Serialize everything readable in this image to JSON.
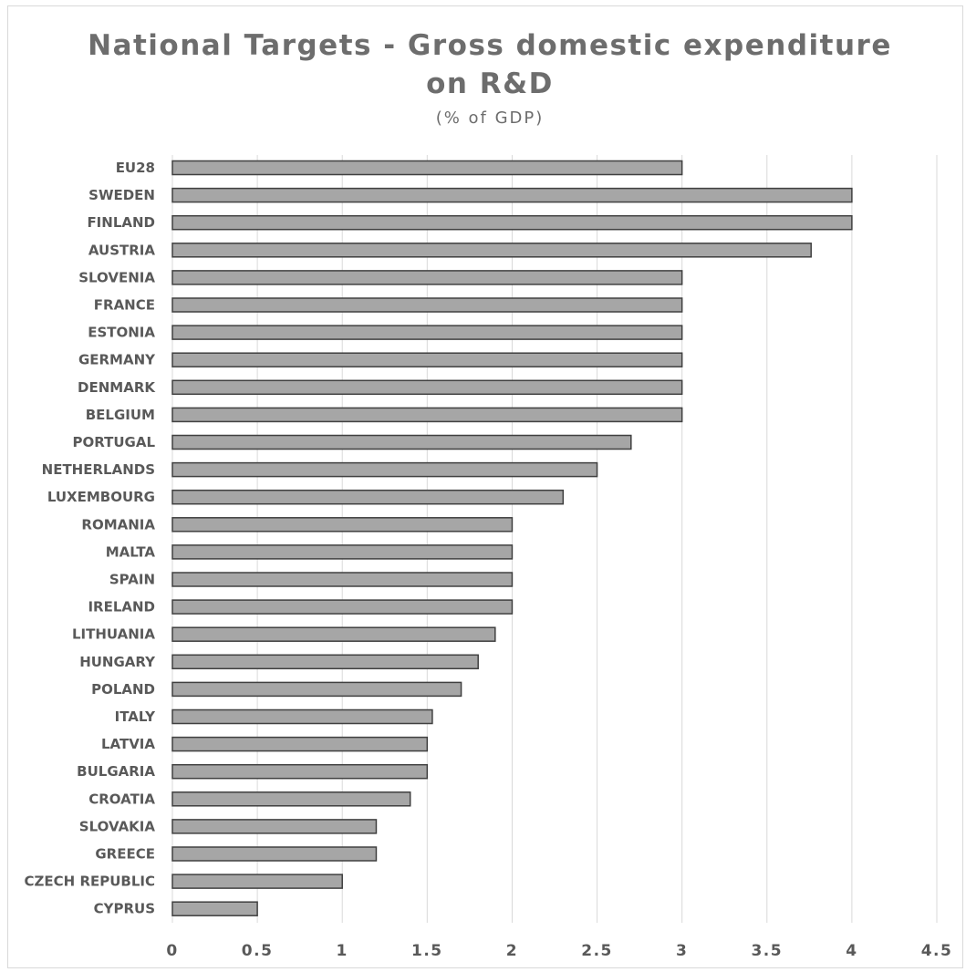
{
  "chart_data": {
    "type": "bar",
    "orientation": "horizontal",
    "title": "National Targets - Gross domestic expenditure on R&D",
    "title_lines": [
      "National Targets - Gross domestic expenditure",
      "on R&D"
    ],
    "subtitle": "(% of GDP)",
    "categories": [
      "EU28",
      "SWEDEN",
      "FINLAND",
      "AUSTRIA",
      "SLOVENIA",
      "FRANCE",
      "ESTONIA",
      "GERMANY",
      "DENMARK",
      "BELGIUM",
      "PORTUGAL",
      "NETHERLANDS",
      "LUXEMBOURG",
      "ROMANIA",
      "MALTA",
      "SPAIN",
      "IRELAND",
      "LITHUANIA",
      "HUNGARY",
      "POLAND",
      "ITALY",
      "LATVIA",
      "BULGARIA",
      "CROATIA",
      "SLOVAKIA",
      "GREECE",
      "CZECH REPUBLIC",
      "CYPRUS"
    ],
    "values": [
      3,
      4,
      4,
      3.76,
      3,
      3,
      3,
      3,
      3,
      3,
      2.7,
      2.5,
      2.3,
      2,
      2,
      2,
      2,
      1.9,
      1.8,
      1.7,
      1.53,
      1.5,
      1.5,
      1.4,
      1.2,
      1.2,
      1,
      0.5
    ],
    "xlim": [
      0,
      4.5
    ],
    "xticks": [
      "0",
      "0.5",
      "1",
      "1.5",
      "2",
      "2.5",
      "3",
      "3.5",
      "4",
      "4.5"
    ],
    "xlabel": "",
    "ylabel": "",
    "grid": true,
    "legend": "none",
    "colors": {
      "bar_fill": "#a6a6a6",
      "bar_stroke": "#404040",
      "text": "#595959",
      "grid": "#d9d9d9"
    }
  }
}
